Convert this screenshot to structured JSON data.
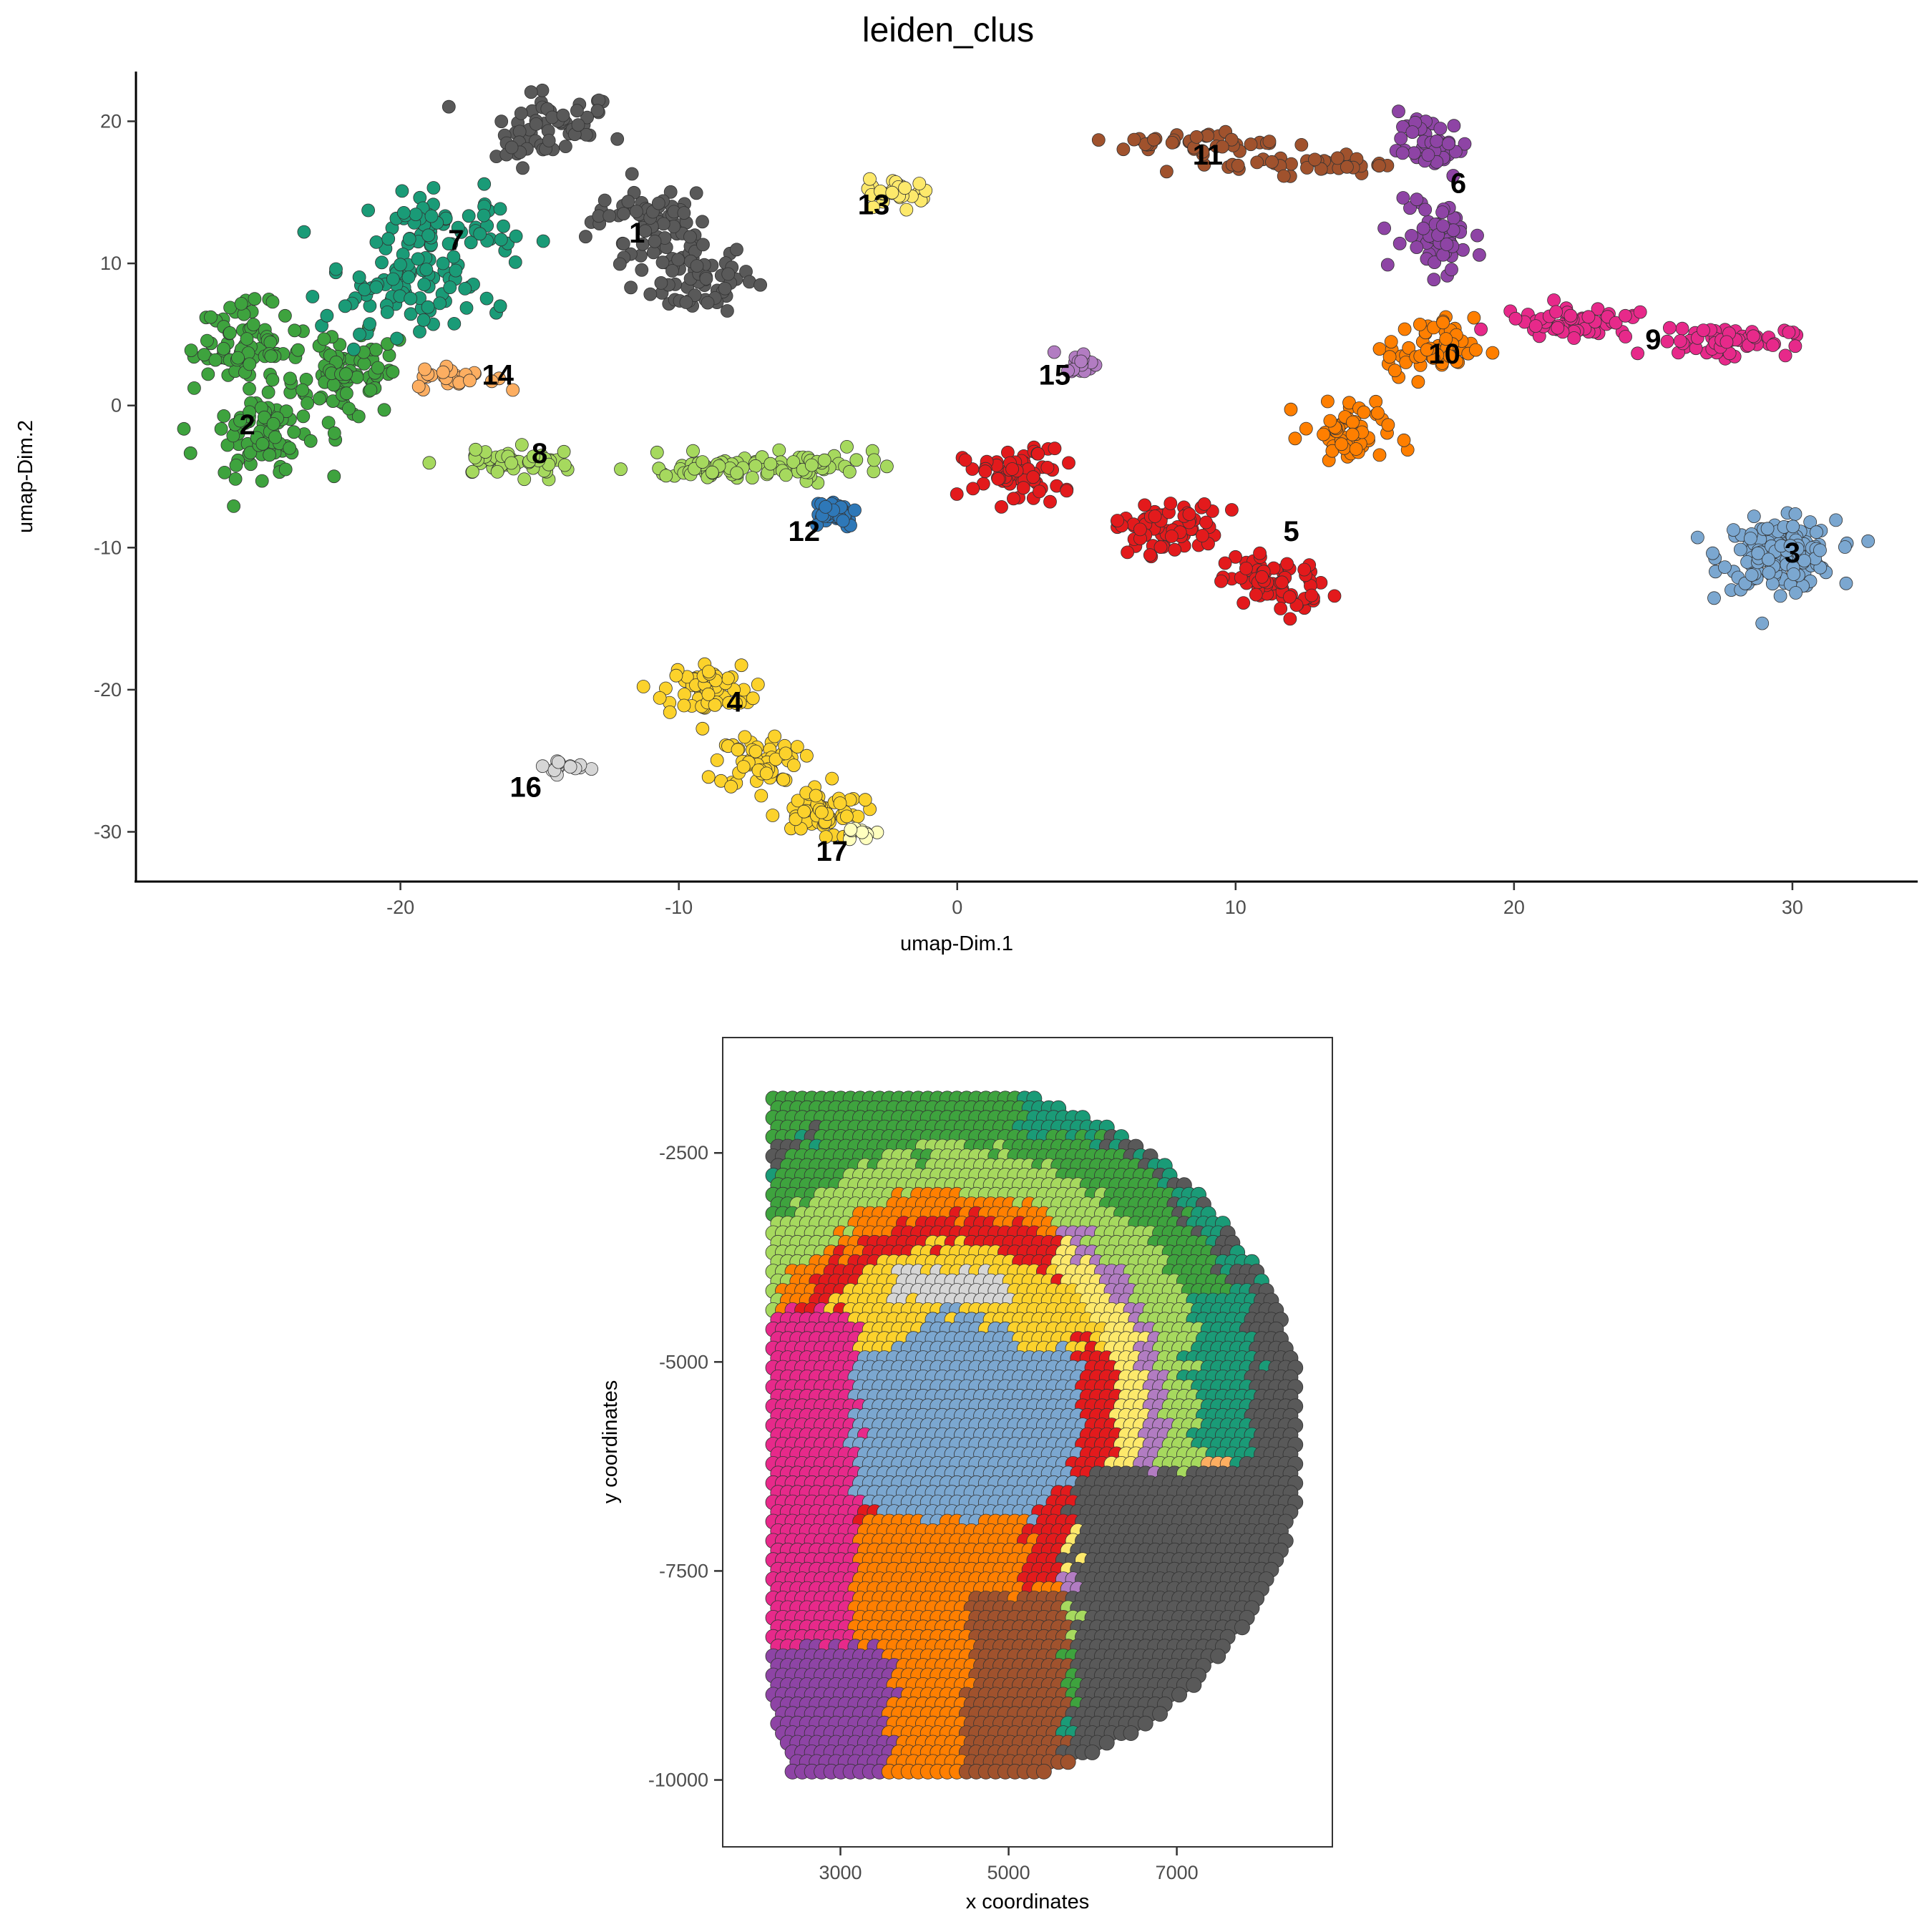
{
  "title": "leiden_clus",
  "chart_data": [
    {
      "type": "scatter",
      "name": "umap",
      "xlabel": "umap-Dim.1",
      "ylabel": "umap-Dim.2",
      "xlim": [
        -29.5,
        34.5
      ],
      "ylim": [
        -33.5,
        23.5
      ],
      "xticks": [
        {
          "v": -20,
          "label": "-20"
        },
        {
          "v": -10,
          "label": "-10"
        },
        {
          "v": 0,
          "label": "0"
        },
        {
          "v": 10,
          "label": "10"
        },
        {
          "v": 20,
          "label": "20"
        },
        {
          "v": 30,
          "label": "30"
        }
      ],
      "yticks": [
        {
          "v": 20,
          "label": "20"
        },
        {
          "v": 10,
          "label": "10"
        },
        {
          "v": 0,
          "label": "0"
        },
        {
          "v": -10,
          "label": "-10"
        },
        {
          "v": -20,
          "label": "-20"
        },
        {
          "v": -30,
          "label": "-30"
        }
      ],
      "clusters": [
        {
          "id": "1",
          "color": "#595959",
          "label_pos": [
            -11.5,
            12
          ],
          "centroids": [
            [
              -11,
              13
            ],
            [
              -14.5,
              19.5
            ],
            [
              -9.5,
              9
            ]
          ],
          "spread": [
            1.8,
            2.2
          ],
          "n": 190
        },
        {
          "id": "2",
          "color": "#3ea33e",
          "label_pos": [
            -25.5,
            -1.5
          ],
          "centroids": [
            [
              -25,
              -2
            ],
            [
              -25.5,
              4
            ],
            [
              -22,
              2
            ]
          ],
          "spread": [
            1.6,
            2.5
          ],
          "n": 230
        },
        {
          "id": "3",
          "color": "#7ba7d0",
          "label_pos": [
            30,
            -10.5
          ],
          "centroids": [
            [
              29.5,
              -10.5
            ]
          ],
          "spread": [
            1.7,
            2.0
          ],
          "n": 170
        },
        {
          "id": "4",
          "color": "#fcd22b",
          "label_pos": [
            -8,
            -21
          ],
          "centroids": [
            [
              -9,
              -20
            ],
            [
              -7,
              -25
            ],
            [
              -5,
              -28.5
            ]
          ],
          "spread": [
            1.3,
            1.6
          ],
          "n": 180
        },
        {
          "id": "5",
          "color": "#e31a1c",
          "label_pos": [
            12,
            -9
          ],
          "centroids": [
            [
              11.5,
              -12.5
            ],
            [
              7.5,
              -8.5
            ],
            [
              2,
              -5
            ]
          ],
          "spread": [
            1.5,
            1.6
          ],
          "n": 210
        },
        {
          "id": "6",
          "color": "#8e44a5",
          "label_pos": [
            18,
            15.5
          ],
          "centroids": [
            [
              17,
              18
            ],
            [
              17.5,
              12
            ]
          ],
          "spread": [
            1.2,
            2.0
          ],
          "n": 95
        },
        {
          "id": "7",
          "color": "#1a9b77",
          "label_pos": [
            -18,
            11.5
          ],
          "centroids": [
            [
              -18.5,
              12
            ],
            [
              -20,
              8
            ]
          ],
          "spread": [
            2.2,
            2.3
          ],
          "n": 150
        },
        {
          "id": "8",
          "color": "#a6d95e",
          "label_pos": [
            -15,
            -3.5
          ],
          "centroids": [
            [
              -16,
              -4
            ],
            [
              -9,
              -4.5
            ],
            [
              -5,
              -4.3
            ]
          ],
          "spread": [
            2.0,
            0.8
          ],
          "n": 150
        },
        {
          "id": "9",
          "color": "#e7298a",
          "label_pos": [
            25,
            4.5
          ],
          "centroids": [
            [
              27.5,
              4.5
            ],
            [
              22,
              6
            ]
          ],
          "spread": [
            2.0,
            0.9
          ],
          "n": 120
        },
        {
          "id": "10",
          "color": "#ff7f00",
          "label_pos": [
            17.5,
            3.5
          ],
          "centroids": [
            [
              17,
              4
            ],
            [
              14,
              -2
            ]
          ],
          "spread": [
            1.3,
            1.8
          ],
          "n": 120
        },
        {
          "id": "11",
          "color": "#a0522d",
          "label_pos": [
            9,
            17.5
          ],
          "centroids": [
            [
              9,
              18.5
            ],
            [
              12.5,
              17
            ]
          ],
          "spread": [
            2.5,
            0.6
          ],
          "n": 80
        },
        {
          "id": "12",
          "color": "#2e78b8",
          "label_pos": [
            -5.5,
            -9
          ],
          "centroids": [
            [
              -4.5,
              -7.5
            ]
          ],
          "spread": [
            0.8,
            0.9
          ],
          "n": 45
        },
        {
          "id": "13",
          "color": "#fde96b",
          "label_pos": [
            -3,
            14
          ],
          "centroids": [
            [
              -2,
              15
            ]
          ],
          "spread": [
            1.0,
            0.8
          ],
          "n": 35
        },
        {
          "id": "14",
          "color": "#fdae61",
          "label_pos": [
            -16.5,
            2
          ],
          "centroids": [
            [
              -18,
              2
            ]
          ],
          "spread": [
            1.2,
            0.7
          ],
          "n": 28
        },
        {
          "id": "15",
          "color": "#b27cc2",
          "label_pos": [
            3.5,
            2
          ],
          "centroids": [
            [
              4.5,
              3
            ]
          ],
          "spread": [
            0.5,
            0.6
          ],
          "n": 20
        },
        {
          "id": "16",
          "color": "#d6d6d6",
          "label_pos": [
            -15.5,
            -27
          ],
          "centroids": [
            [
              -14,
              -25.5
            ]
          ],
          "spread": [
            1.0,
            0.5
          ],
          "n": 15
        },
        {
          "id": "17",
          "color": "#ffffbf",
          "label_pos": [
            -4.5,
            -31.5
          ],
          "centroids": [
            [
              -3.5,
              -30
            ]
          ],
          "spread": [
            0.6,
            0.4
          ],
          "n": 12
        }
      ]
    },
    {
      "type": "scatter",
      "name": "spatial",
      "xlabel": "x coordinates",
      "ylabel": "y coordinates",
      "xlim": [
        1600,
        8850
      ],
      "ylim": [
        -10800,
        -1120
      ],
      "xticks": [
        {
          "v": 3000,
          "label": "3000"
        },
        {
          "v": 5000,
          "label": "5000"
        },
        {
          "v": 7000,
          "label": "7000"
        }
      ],
      "yticks": [
        {
          "v": -2500,
          "label": "-2500"
        },
        {
          "v": -5000,
          "label": "-5000"
        },
        {
          "v": -7500,
          "label": "-7500"
        },
        {
          "v": -10000,
          "label": "-10000"
        }
      ],
      "regions": [
        {
          "cluster": "3",
          "color": "#7ba7d0"
        },
        {
          "cluster": "5",
          "color": "#e31a1c"
        },
        {
          "cluster": "4",
          "color": "#fcd22b"
        },
        {
          "cluster": "1",
          "color": "#595959"
        },
        {
          "cluster": "2",
          "color": "#3ea33e"
        },
        {
          "cluster": "7",
          "color": "#1a9b77"
        },
        {
          "cluster": "8",
          "color": "#a6d95e"
        },
        {
          "cluster": "9",
          "color": "#e7298a"
        },
        {
          "cluster": "6",
          "color": "#8e44a5"
        },
        {
          "cluster": "10",
          "color": "#ff7f00"
        },
        {
          "cluster": "11",
          "color": "#a0522d"
        },
        {
          "cluster": "12",
          "color": "#2e78b8"
        },
        {
          "cluster": "13",
          "color": "#fde96b"
        },
        {
          "cluster": "14",
          "color": "#fdae61"
        },
        {
          "cluster": "15",
          "color": "#b27cc2"
        },
        {
          "cluster": "16",
          "color": "#d6d6d6"
        },
        {
          "cluster": "17",
          "color": "#ffffbf"
        }
      ]
    }
  ]
}
